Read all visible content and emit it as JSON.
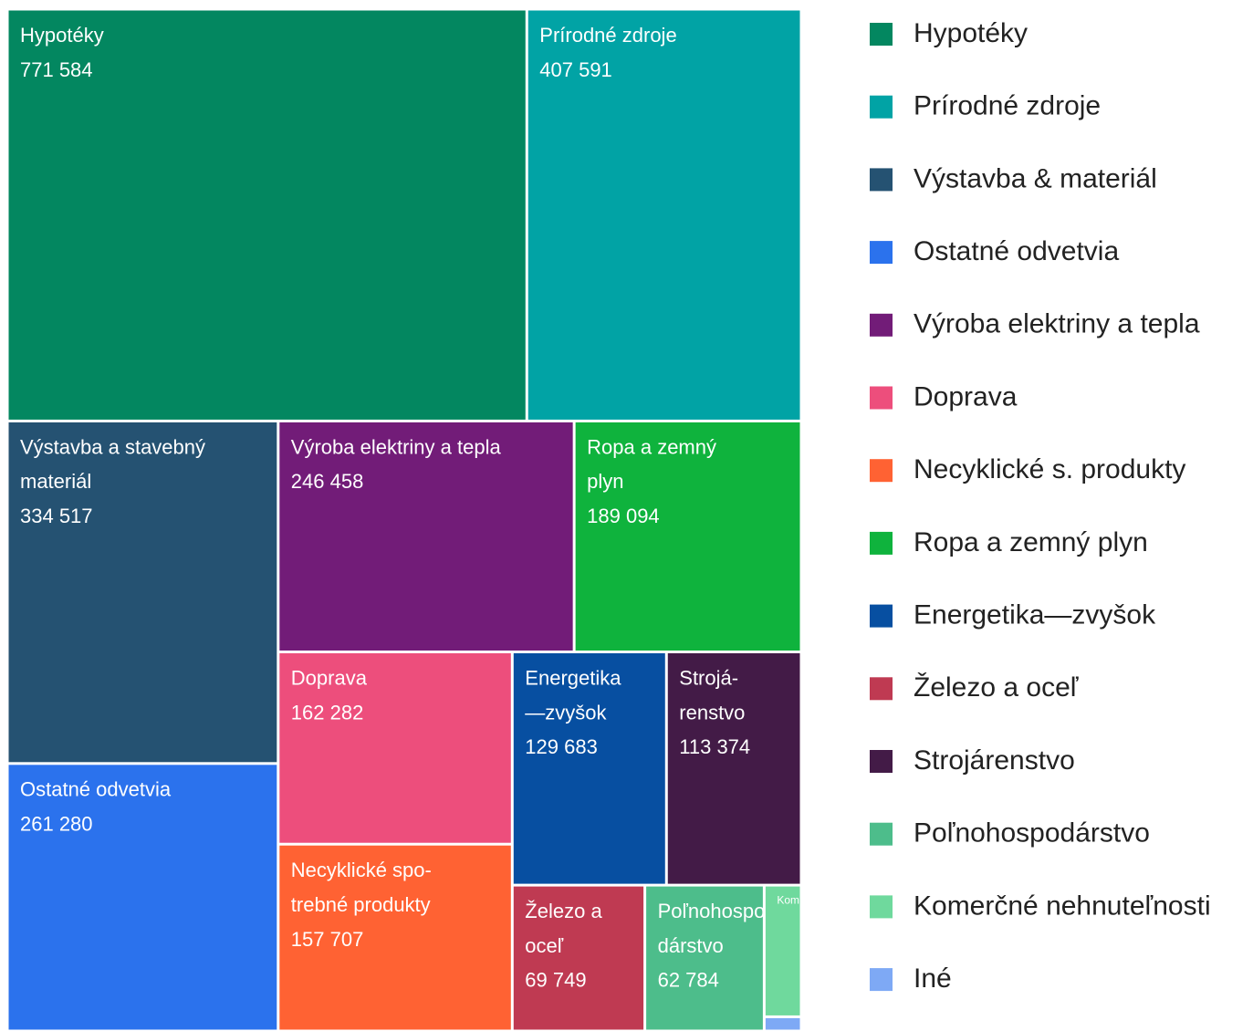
{
  "chart_data": {
    "type": "treemap",
    "series": [
      {
        "name": "Hypotéky",
        "label": [
          "Hypotéky"
        ],
        "value": 771584,
        "value_label": "771 584",
        "color": "#038760"
      },
      {
        "name": "Prírodné zdroje",
        "label": [
          "Prírodné zdroje"
        ],
        "value": 407591,
        "value_label": "407 591",
        "color": "#01a3a5"
      },
      {
        "name": "Výstavba & materiál",
        "label": [
          "Výstavba a stavebný",
          "materiál"
        ],
        "value": 334517,
        "value_label": "334 517",
        "color": "#255272"
      },
      {
        "name": "Ostatné odvetvia",
        "label": [
          "Ostatné odvetvia"
        ],
        "value": 261280,
        "value_label": "261 280",
        "color": "#2b72ed"
      },
      {
        "name": "Výroba elektriny a tepla",
        "label": [
          "Výroba elektriny a tepla"
        ],
        "value": 246458,
        "value_label": "246 458",
        "color": "#721c78"
      },
      {
        "name": "Ropa a zemný plyn",
        "label": [
          "Ropa a zemný",
          "plyn"
        ],
        "value": 189094,
        "value_label": "189 094",
        "color": "#0fb33d"
      },
      {
        "name": "Doprava",
        "label": [
          "Doprava"
        ],
        "value": 162282,
        "value_label": "162 282",
        "color": "#ed4e7c"
      },
      {
        "name": "Necyklické s. produkty",
        "label": [
          "Necyklické spo-",
          "trebné produkty"
        ],
        "value": 157707,
        "value_label": "157 707",
        "color": "#ff6233"
      },
      {
        "name": "Energetika—zvyšok",
        "label": [
          "Energetika",
          "—zvyšok"
        ],
        "value": 129683,
        "value_label": "129 683",
        "color": "#074fa1"
      },
      {
        "name": "Strojárenstvo",
        "label": [
          "Strojá-",
          "renstvo"
        ],
        "value": 113374,
        "value_label": "113 374",
        "color": "#431b47"
      },
      {
        "name": "Železo a oceľ",
        "label": [
          "Železo a",
          "oceľ"
        ],
        "value": 69749,
        "value_label": "69 749",
        "color": "#bf3a52"
      },
      {
        "name": "Poľnohospodárstvo",
        "label": [
          "Poľnohospo-",
          "dárstvo"
        ],
        "value": 62784,
        "value_label": "62 784",
        "color": "#4dbd8b"
      },
      {
        "name": "Komerčné nehnuteľnosti",
        "label": [
          "Komerčné n."
        ],
        "value": 17600,
        "color": "#6fd99d"
      },
      {
        "name": "Iné",
        "value": 1900,
        "color": "#7ea9f5"
      }
    ],
    "legend": [
      "Hypotéky",
      "Prírodné zdroje",
      "Výstavba & materiál",
      "Ostatné odvetvia",
      "Výroba elektriny a tepla",
      "Doprava",
      "Necyklické s. produkty",
      "Ropa a zemný plyn",
      "Energetika—zvyšok",
      "Železo a oceľ",
      "Strojárenstvo",
      "Poľnohospodárstvo",
      "Komerčné nehnuteľnosti",
      "Iné"
    ]
  }
}
